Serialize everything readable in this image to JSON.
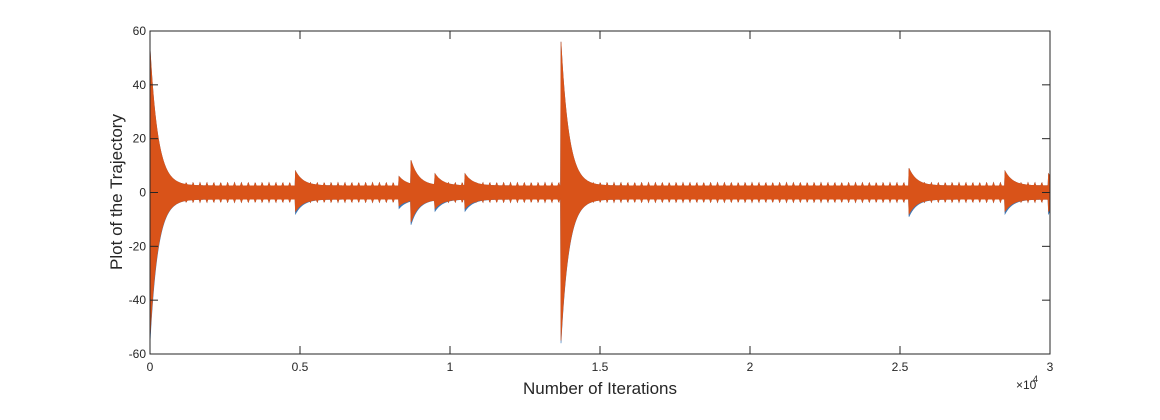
{
  "chart_data": {
    "type": "line",
    "title": "",
    "xlabel": "Number of Iterations",
    "ylabel": "Plot of the Trajectory",
    "xlim": [
      0,
      30000
    ],
    "ylim": [
      -60,
      60
    ],
    "x_tick_values": [
      0,
      5000,
      10000,
      15000,
      20000,
      25000,
      30000
    ],
    "x_tick_labels": [
      "0",
      "0.5",
      "1",
      "1.5",
      "2",
      "2.5",
      "3"
    ],
    "x_exponent_label": "×10",
    "x_exponent_power": "4",
    "y_tick_values": [
      -60,
      -40,
      -20,
      0,
      20,
      40,
      60
    ],
    "y_tick_labels": [
      "-60",
      "-40",
      "-20",
      "0",
      "20",
      "40",
      "60"
    ],
    "grid": false,
    "legend": "none",
    "series": [
      {
        "color": "#3b78b8",
        "baseline_band": [
          -2.5,
          2.5
        ],
        "spikes": [
          {
            "x": 0,
            "upper": 54,
            "lower": -56
          },
          {
            "x": 4850,
            "upper": 8,
            "lower": -8
          },
          {
            "x": 8300,
            "upper": 6,
            "lower": -6
          },
          {
            "x": 8700,
            "upper": 12,
            "lower": -12
          },
          {
            "x": 9500,
            "upper": 7,
            "lower": -7
          },
          {
            "x": 10500,
            "upper": 7,
            "lower": -7
          },
          {
            "x": 13700,
            "upper": 56,
            "lower": -56
          },
          {
            "x": 25300,
            "upper": 9,
            "lower": -9
          },
          {
            "x": 28500,
            "upper": 8,
            "lower": -8
          },
          {
            "x": 29950,
            "upper": 7,
            "lower": -8
          }
        ]
      },
      {
        "color": "#d95319",
        "baseline_band": [
          -2.5,
          2.5
        ],
        "spikes": [
          {
            "x": 0,
            "upper": 54,
            "lower": -54
          },
          {
            "x": 4850,
            "upper": 8,
            "lower": -7
          },
          {
            "x": 8300,
            "upper": 6,
            "lower": -5
          },
          {
            "x": 8700,
            "upper": 12,
            "lower": -11
          },
          {
            "x": 9500,
            "upper": 7,
            "lower": -6
          },
          {
            "x": 10500,
            "upper": 7,
            "lower": -6
          },
          {
            "x": 13700,
            "upper": 56,
            "lower": -55
          },
          {
            "x": 25300,
            "upper": 9,
            "lower": -8
          },
          {
            "x": 28500,
            "upper": 8,
            "lower": -7
          },
          {
            "x": 29950,
            "upper": 7,
            "lower": -7
          }
        ]
      }
    ]
  }
}
